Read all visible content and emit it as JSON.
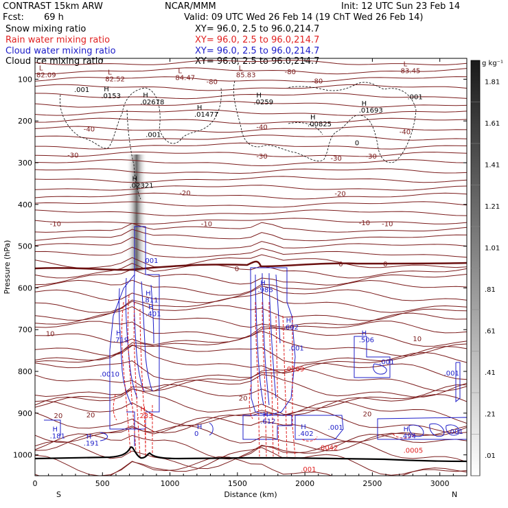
{
  "header": {
    "model": "CONTRAST 15km ARW",
    "center": "NCAR/MMM",
    "init": "Init: 12 UTC Sun 23 Feb 14",
    "fcst_label": "Fcst:",
    "fcst_value": "69 h",
    "valid": "Valid: 09 UTC Wed 26 Feb 14 (19 ChT Wed 26 Feb 14)"
  },
  "fields": [
    {
      "label": "Snow mixing ratio",
      "xy": "XY=  96.0,  2.5 to  96.0,214.7",
      "color": "#000000"
    },
    {
      "label": "Rain water mixing ratio",
      "xy": "XY=  96.0,  2.5 to  96.0,214.7",
      "color": "#e02020"
    },
    {
      "label": "Cloud water mixing ratio",
      "xy": "XY=  96.0,  2.5 to  96.0,214.7",
      "color": "#1c1cc8"
    },
    {
      "label": "Cloud ice mixing ratio",
      "xy": "XY=  96.0,  2.5 to  96.0,214.7",
      "color": "#000000"
    }
  ],
  "colorbar": {
    "unit": "g kg⁻¹",
    "levels": [
      ".01",
      ".21",
      ".41",
      ".61",
      ".81",
      "1.01",
      "1.21",
      "1.41",
      "1.61",
      "1.81"
    ]
  },
  "chart_data": {
    "type": "contour",
    "xlabel": "Distance (km)",
    "ylabel": "Pressure (hPa)",
    "xlim": [
      0,
      3200
    ],
    "ylim": [
      1050,
      50
    ],
    "x_ticks": [
      "0",
      "500",
      "1000",
      "1500",
      "2000",
      "2500",
      "3000"
    ],
    "x_tick_values": [
      0,
      500,
      1000,
      1500,
      2000,
      2500,
      3000
    ],
    "y_ticks": [
      "100",
      "200",
      "300",
      "400",
      "500",
      "600",
      "700",
      "800",
      "900",
      "1000"
    ],
    "y_tick_values": [
      100,
      200,
      300,
      400,
      500,
      600,
      700,
      800,
      900,
      1000
    ],
    "left_end": "S",
    "right_end": "N",
    "temperature_contours": [
      {
        "label": "-80",
        "x": 1850,
        "p": 88
      },
      {
        "label": "-80",
        "x": 1270,
        "p": 112
      },
      {
        "label": "-80",
        "x": 2050,
        "p": 110
      },
      {
        "label": "-40",
        "x": 360,
        "p": 225
      },
      {
        "label": "-40",
        "x": 1640,
        "p": 220
      },
      {
        "label": "-40",
        "x": 2700,
        "p": 232
      },
      {
        "label": "-30",
        "x": 240,
        "p": 288
      },
      {
        "label": "-30",
        "x": 1640,
        "p": 290
      },
      {
        "label": "-30",
        "x": 2190,
        "p": 295
      },
      {
        "label": "-30",
        "x": 2450,
        "p": 290
      },
      {
        "label": "-20",
        "x": 1070,
        "p": 378
      },
      {
        "label": "-20",
        "x": 2220,
        "p": 380
      },
      {
        "label": "-10",
        "x": 110,
        "p": 452
      },
      {
        "label": "-10",
        "x": 1230,
        "p": 452
      },
      {
        "label": "-10",
        "x": 2400,
        "p": 450
      },
      {
        "label": "-10",
        "x": 2570,
        "p": 452
      },
      {
        "label": "0",
        "x": 1480,
        "p": 560
      },
      {
        "label": "0",
        "x": 2250,
        "p": 548
      },
      {
        "label": "0",
        "x": 2580,
        "p": 548
      },
      {
        "label": "10",
        "x": 80,
        "p": 715
      },
      {
        "label": "10",
        "x": 2800,
        "p": 728
      },
      {
        "label": "20",
        "x": 140,
        "p": 912
      },
      {
        "label": "20",
        "x": 380,
        "p": 910
      },
      {
        "label": "20",
        "x": 1510,
        "p": 870
      },
      {
        "label": "20",
        "x": 2430,
        "p": 908
      }
    ],
    "extrema": [
      {
        "type": "L",
        "value": "82.09",
        "x": 30,
        "p": 95
      },
      {
        "type": "L",
        "value": "82.52",
        "x": 540,
        "p": 105
      },
      {
        "type": "L",
        "value": "84.47",
        "x": 1060,
        "p": 102
      },
      {
        "type": "L",
        "value": "85.83",
        "x": 1510,
        "p": 95
      },
      {
        "type": "L",
        "value": "83.45",
        "x": 2730,
        "p": 85
      },
      {
        "type": "H",
        "value": ".0153",
        "x": 510,
        "p": 145
      },
      {
        "type": "H",
        "value": ".02678",
        "x": 800,
        "p": 160
      },
      {
        "type": "H",
        "value": ".0259",
        "x": 1640,
        "p": 160
      },
      {
        "type": "H",
        "value": ".01477",
        "x": 1200,
        "p": 190
      },
      {
        "type": "H",
        "value": ".00825",
        "x": 2040,
        "p": 213
      },
      {
        "type": "H",
        "value": ".01693",
        "x": 2420,
        "p": 180
      },
      {
        "type": "H",
        "value": ".02321",
        "x": 720,
        "p": 360
      },
      {
        "type": "H",
        "value": ".719",
        "x": 600,
        "p": 730
      },
      {
        "type": "H",
        "value": ".811",
        "x": 820,
        "p": 635
      },
      {
        "type": "H",
        "value": ".401",
        "x": 840,
        "p": 668
      },
      {
        "type": "H",
        "value": ".986",
        "x": 1670,
        "p": 610
      },
      {
        "type": "H",
        "value": ".602",
        "x": 1860,
        "p": 700
      },
      {
        "type": "H",
        "value": ".506",
        "x": 2420,
        "p": 730
      },
      {
        "type": "H",
        "value": ".181",
        "x": 130,
        "p": 960
      },
      {
        "type": "H",
        "value": ".191",
        "x": 380,
        "p": 978
      },
      {
        "type": "H",
        "value": "0",
        "x": 1200,
        "p": 955
      },
      {
        "type": "H",
        "value": ".402",
        "x": 1970,
        "p": 955
      },
      {
        "type": "H",
        "value": ".494",
        "x": 2730,
        "p": 960
      },
      {
        "type": "H",
        "value": ".612",
        "x": 1690,
        "p": 925
      },
      {
        "type": "H",
        "value": ".233",
        "x": 780,
        "p": 912
      }
    ],
    "cloud_water_labels": [
      {
        "value": ".001",
        "x": 800,
        "p": 540
      },
      {
        "value": ".0010",
        "x": 480,
        "p": 812
      },
      {
        "value": ".001",
        "x": 1880,
        "p": 750
      },
      {
        "value": ".001",
        "x": 2550,
        "p": 783
      },
      {
        "value": ".001",
        "x": 3030,
        "p": 810
      },
      {
        "value": ".001",
        "x": 2170,
        "p": 940
      },
      {
        "value": ".001",
        "x": 3060,
        "p": 950
      }
    ],
    "rain_labels": [
      {
        "value": ".0209",
        "x": 1850,
        "p": 800
      },
      {
        "value": ".0042",
        "x": 2100,
        "p": 988
      },
      {
        "value": ".0005",
        "x": 2730,
        "p": 995
      },
      {
        "value": ".001",
        "x": 1970,
        "p": 1040
      }
    ],
    "ice_labels": [
      {
        "value": ".001",
        "x": 290,
        "p": 131
      },
      {
        "value": ".001",
        "x": 820,
        "p": 238
      },
      {
        "value": ".001",
        "x": 2760,
        "p": 148
      },
      {
        "value": "0",
        "x": 2370,
        "p": 258
      }
    ]
  }
}
